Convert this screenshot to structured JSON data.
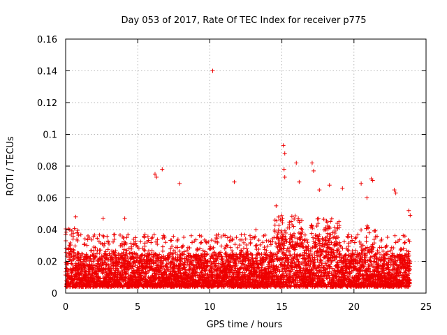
{
  "chart_data": {
    "type": "scatter",
    "title": "Day 053 of 2017, Rate Of TEC Index for receiver p775",
    "xlabel": "GPS time / hours",
    "ylabel": "ROTI / TECUs",
    "xlim": [
      0,
      25
    ],
    "ylim": [
      0,
      0.16
    ],
    "xticks": [
      "0",
      "5",
      "10",
      "15",
      "20",
      "25"
    ],
    "yticks": [
      "0",
      "0.02",
      "0.04",
      "0.06",
      "0.08",
      "0.1",
      "0.12",
      "0.14",
      "0.16"
    ],
    "grid": true,
    "marker": "+",
    "series": [
      {
        "name": "ROTI",
        "color": "#ee0000",
        "x": [
          10.2,
          15.1,
          15.2,
          15.15,
          16.0,
          17.1,
          17.2,
          15.2,
          6.7,
          6.2,
          6.3,
          11.7,
          22.8,
          22.9,
          21.2,
          21.3,
          7.9,
          18.3,
          19.2,
          20.5,
          16.2,
          4.1,
          0.7,
          2.6,
          13.2,
          23.8,
          23.9,
          17.6,
          20.9,
          14.6
        ],
        "y": [
          0.14,
          0.093,
          0.088,
          0.078,
          0.082,
          0.082,
          0.077,
          0.073,
          0.078,
          0.075,
          0.073,
          0.07,
          0.065,
          0.063,
          0.072,
          0.071,
          0.069,
          0.068,
          0.066,
          0.069,
          0.07,
          0.047,
          0.048,
          0.047,
          0.04,
          0.052,
          0.049,
          0.065,
          0.06,
          0.055
        ]
      }
    ],
    "background_band": {
      "note": "dense cluster of ROTI values between roughly 0.004 and 0.04 TECU/s across hours 0-23.9",
      "x_range": [
        0,
        23.9
      ],
      "y_range": [
        0.004,
        0.04
      ]
    }
  }
}
